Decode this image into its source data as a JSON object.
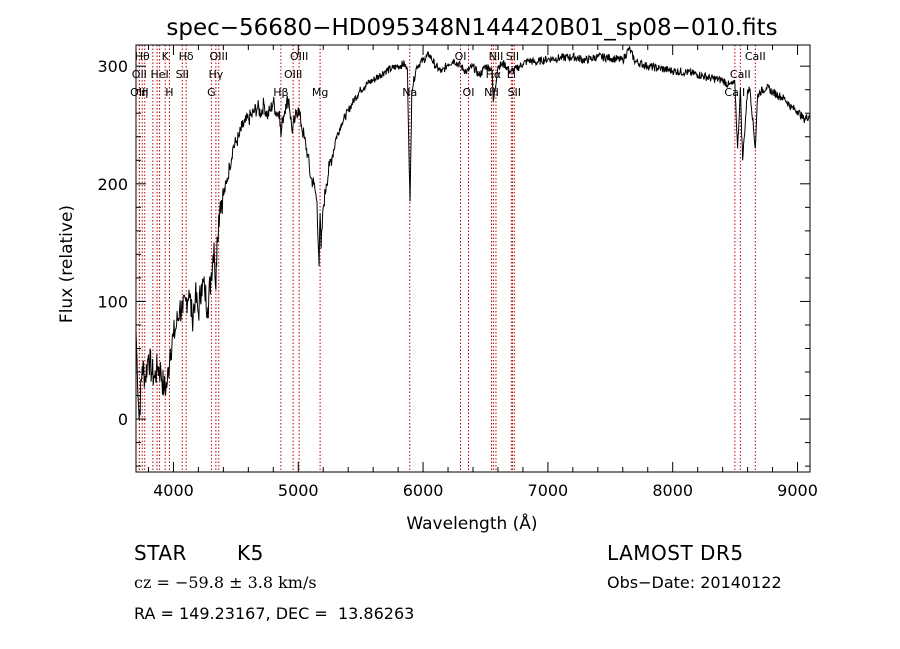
{
  "chart_data": {
    "type": "line",
    "title": "spec−56680−HD095348N144420B01_sp08−010.fits",
    "xlabel": "Wavelength (Å)",
    "ylabel": "Flux (relative)",
    "xlim": [
      3700,
      9100
    ],
    "ylim": [
      -45,
      318
    ],
    "x_ticks": [
      4000,
      5000,
      6000,
      7000,
      8000,
      9000
    ],
    "x_tick_labels": [
      "4000",
      "5000",
      "6000",
      "7000",
      "8000",
      "9000"
    ],
    "y_ticks": [
      0,
      100,
      200,
      300
    ],
    "y_tick_labels": [
      "0",
      "100",
      "200",
      "300"
    ],
    "grid": false,
    "series": [
      {
        "x": [
          3700,
          3725,
          3750,
          3775,
          3800,
          3825,
          3850,
          3875,
          3900,
          3925,
          3950,
          3975,
          4000,
          4025,
          4050,
          4075,
          4100,
          4125,
          4150,
          4175,
          4200,
          4225,
          4250,
          4275,
          4300,
          4325,
          4340,
          4350,
          4375,
          4400,
          4425,
          4450,
          4475,
          4500,
          4525,
          4550,
          4575,
          4600,
          4625,
          4650,
          4675,
          4700,
          4725,
          4750,
          4775,
          4800,
          4825,
          4850,
          4861,
          4875,
          4900,
          4925,
          4950,
          4975,
          5000,
          5025,
          5050,
          5075,
          5100,
          5125,
          5150,
          5167,
          5175,
          5183,
          5200,
          5225,
          5250,
          5275,
          5300,
          5350,
          5400,
          5450,
          5500,
          5550,
          5600,
          5650,
          5700,
          5750,
          5800,
          5850,
          5875,
          5890,
          5896,
          5910,
          5950,
          6000,
          6050,
          6100,
          6150,
          6200,
          6250,
          6300,
          6350,
          6400,
          6450,
          6500,
          6550,
          6563,
          6600,
          6650,
          6700,
          6750,
          6800,
          6850,
          6900,
          6950,
          7000,
          7100,
          7200,
          7300,
          7400,
          7500,
          7600,
          7650,
          7700,
          7800,
          7900,
          8000,
          8100,
          8200,
          8300,
          8400,
          8450,
          8498,
          8520,
          8542,
          8560,
          8600,
          8620,
          8662,
          8680,
          8700,
          8750,
          8800,
          8850,
          8900,
          8950,
          9000,
          9050,
          9100
        ],
        "values": [
          75,
          0,
          45,
          35,
          55,
          40,
          35,
          45,
          40,
          25,
          30,
          60,
          70,
          80,
          95,
          90,
          100,
          110,
          85,
          105,
          90,
          115,
          110,
          95,
          120,
          150,
          110,
          155,
          185,
          190,
          200,
          215,
          230,
          235,
          240,
          248,
          252,
          255,
          258,
          262,
          265,
          260,
          268,
          258,
          262,
          270,
          260,
          262,
          240,
          255,
          268,
          272,
          245,
          255,
          265,
          250,
          238,
          225,
          205,
          200,
          185,
          130,
          175,
          145,
          180,
          200,
          215,
          225,
          238,
          252,
          262,
          272,
          280,
          285,
          288,
          292,
          296,
          298,
          300,
          302,
          296,
          210,
          185,
          280,
          300,
          305,
          310,
          300,
          295,
          302,
          305,
          300,
          295,
          300,
          292,
          300,
          298,
          270,
          300,
          302,
          295,
          298,
          302,
          305,
          303,
          305,
          306,
          307,
          308,
          305,
          308,
          307,
          305,
          315,
          304,
          300,
          298,
          296,
          295,
          293,
          290,
          288,
          284,
          285,
          230,
          280,
          220,
          280,
          280,
          230,
          275,
          278,
          282,
          278,
          275,
          272,
          265,
          262,
          255,
          258
        ]
      }
    ],
    "line_markers": [
      {
        "w": 3750,
        "label": "Hθ",
        "row": 0
      },
      {
        "w": 3727,
        "label": "OII",
        "row": 1
      },
      {
        "w": 3727,
        "label": "OIII",
        "row": 2
      },
      {
        "w": 3770,
        "label": "η",
        "row": 2
      },
      {
        "w": 3835,
        "label": "",
        "row": 0
      },
      {
        "w": 3869,
        "label": "",
        "row": 0
      },
      {
        "w": 3889,
        "label": "HeI",
        "row": 1
      },
      {
        "w": 3934,
        "label": "K",
        "row": 0
      },
      {
        "w": 3968,
        "label": "H",
        "row": 2
      },
      {
        "w": 4071,
        "label": "SII",
        "row": 1
      },
      {
        "w": 4102,
        "label": "Hδ",
        "row": 0
      },
      {
        "w": 4304,
        "label": "G",
        "row": 2
      },
      {
        "w": 4340,
        "label": "Hγ",
        "row": 1
      },
      {
        "w": 4363,
        "label": "OIII",
        "row": 0
      },
      {
        "w": 4861,
        "label": "Hβ",
        "row": 2
      },
      {
        "w": 4959,
        "label": "OIII",
        "row": 1
      },
      {
        "w": 5007,
        "label": "OIII",
        "row": 0
      },
      {
        "w": 5175,
        "label": "Mg",
        "row": 2
      },
      {
        "w": 5893,
        "label": "Na",
        "row": 2
      },
      {
        "w": 6300,
        "label": "OI",
        "row": 0
      },
      {
        "w": 6364,
        "label": "OI",
        "row": 2
      },
      {
        "w": 6548,
        "label": "NII",
        "row": 2
      },
      {
        "w": 6563,
        "label": "Hα",
        "row": 1
      },
      {
        "w": 6584,
        "label": "NII",
        "row": 0
      },
      {
        "w": 6707,
        "label": "Li",
        "row": 1
      },
      {
        "w": 6716,
        "label": "SII",
        "row": 0
      },
      {
        "w": 6731,
        "label": "SII",
        "row": 2
      },
      {
        "w": 8498,
        "label": "CaII",
        "row": 2
      },
      {
        "w": 8542,
        "label": "CaII",
        "row": 1
      },
      {
        "w": 8662,
        "label": "CaII",
        "row": 0
      }
    ],
    "colors": {
      "spectrum": "#000000",
      "marker": "#c00000",
      "axis": "#000000"
    }
  },
  "info": {
    "object_type": "STAR",
    "subclass": "K5",
    "survey": "LAMOST DR5",
    "cz": "cz = −59.8 ± 3.8 km/s",
    "obs_date": "Obs−Date: 20140122",
    "coords": "RA = 149.23167, DEC =  13.86263"
  }
}
